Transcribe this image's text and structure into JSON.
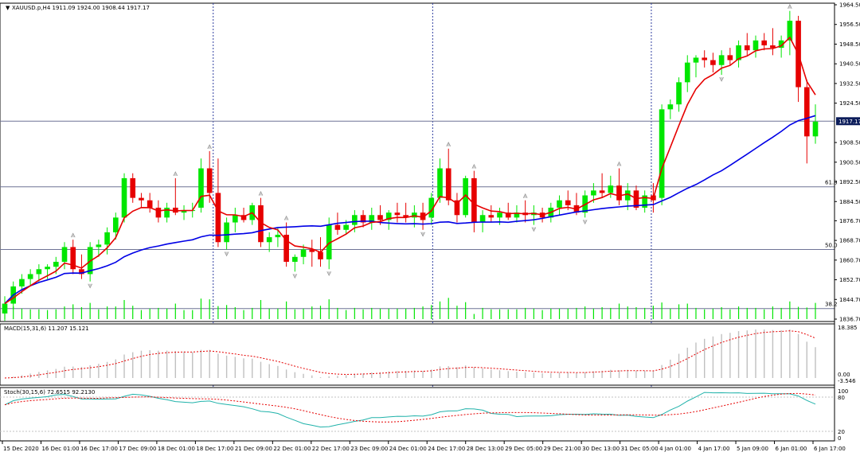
{
  "symbol_header": {
    "arrow": "▼",
    "text": "XAUUSD.p,H4  1911.09 1924.00 1908.44 1917.17"
  },
  "current_price_label": "1917.17",
  "price_axis": {
    "ticks": [
      "1964.50",
      "1956.50",
      "1948.50",
      "1940.50",
      "1932.50",
      "1924.50",
      "1908.50",
      "1900.50",
      "1892.50",
      "1884.50",
      "1876.70",
      "1868.70",
      "1860.70",
      "1852.70",
      "1844.70",
      "1836.70"
    ],
    "ymin": 1836.7,
    "ymax": 1964.5
  },
  "fib_levels": [
    {
      "label": "61.8",
      "price": 1890.5
    },
    {
      "label": "50.0",
      "price": 1865.0
    },
    {
      "label": "38.2",
      "price": 1841.0
    }
  ],
  "indicators": {
    "macd": {
      "label": "MACD(15,31,6) 11.207 15.121",
      "axis": [
        "18.385",
        "0.00",
        "-3.546"
      ]
    },
    "stoch": {
      "label": "Stoch(30,15,6) 72.6515 92.2130",
      "axis": [
        "100",
        "80",
        "20",
        "0"
      ]
    }
  },
  "time_axis": [
    "15 Dec 2020",
    "16 Dec 01:00",
    "16 Dec 17:00",
    "17 Dec 09:00",
    "18 Dec 01:00",
    "18 Dec 17:00",
    "21 Dec 09:00",
    "22 Dec 01:00",
    "22 Dec 17:00",
    "23 Dec 09:00",
    "24 Dec 01:00",
    "24 Dec 17:00",
    "28 Dec 13:00",
    "29 Dec 05:00",
    "29 Dec 21:00",
    "30 Dec 13:00",
    "31 Dec 05:00",
    "4 Jan 01:00",
    "4 Jan 17:00",
    "5 Jan 09:00",
    "6 Jan 01:00",
    "6 Jan 17:00"
  ],
  "colors": {
    "bull": "#00e600",
    "bear": "#e60000",
    "ma_fast": "#e60000",
    "ma_slow": "#0000e6",
    "stoch_main": "#20b2aa",
    "stoch_signal": "#e60000",
    "macd_hist": "#c0c0c0",
    "price_label_bg": "#0b1c5a"
  },
  "chart_data": {
    "type": "candlestick",
    "title": "XAUUSD.p,H4",
    "ohlc_header": {
      "open": 1911.09,
      "high": 1924.0,
      "low": 1908.44,
      "close": 1917.17
    },
    "candles": [
      [
        1839,
        1846,
        1836,
        1843
      ],
      [
        1843,
        1852,
        1841,
        1850
      ],
      [
        1850,
        1855,
        1847,
        1853
      ],
      [
        1853,
        1857,
        1850,
        1855
      ],
      [
        1855,
        1859,
        1852,
        1857
      ],
      [
        1857,
        1859,
        1853,
        1858
      ],
      [
        1858,
        1862,
        1855,
        1860
      ],
      [
        1860,
        1868,
        1857,
        1866
      ],
      [
        1866,
        1869,
        1855,
        1857
      ],
      [
        1857,
        1863,
        1853,
        1855
      ],
      [
        1855,
        1868,
        1852,
        1866
      ],
      [
        1866,
        1869,
        1862,
        1867
      ],
      [
        1867,
        1874,
        1863,
        1872
      ],
      [
        1872,
        1880,
        1869,
        1878
      ],
      [
        1878,
        1896,
        1876,
        1894
      ],
      [
        1894,
        1896,
        1884,
        1886
      ],
      [
        1886,
        1888,
        1882,
        1885
      ],
      [
        1885,
        1888,
        1880,
        1882
      ],
      [
        1882,
        1885,
        1876,
        1878
      ],
      [
        1878,
        1884,
        1876,
        1882
      ],
      [
        1882,
        1894,
        1879,
        1880
      ],
      [
        1880,
        1883,
        1877,
        1881
      ],
      [
        1881,
        1884,
        1878,
        1881
      ],
      [
        1882,
        1902,
        1880,
        1898
      ],
      [
        1898,
        1905,
        1884,
        1888
      ],
      [
        1888,
        1902,
        1866,
        1868
      ],
      [
        1868,
        1878,
        1865,
        1876
      ],
      [
        1876,
        1882,
        1872,
        1879
      ],
      [
        1879,
        1882,
        1876,
        1877
      ],
      [
        1877,
        1884,
        1875,
        1883
      ],
      [
        1883,
        1886,
        1866,
        1868
      ],
      [
        1868,
        1872,
        1864,
        1870
      ],
      [
        1870,
        1874,
        1866,
        1871
      ],
      [
        1871,
        1876,
        1858,
        1860
      ],
      [
        1860,
        1863,
        1856,
        1862
      ],
      [
        1862,
        1867,
        1859,
        1865
      ],
      [
        1865,
        1869,
        1858,
        1864
      ],
      [
        1864,
        1870,
        1858,
        1861
      ],
      [
        1861,
        1878,
        1857,
        1875
      ],
      [
        1875,
        1880,
        1871,
        1873
      ],
      [
        1873,
        1877,
        1871,
        1875
      ],
      [
        1875,
        1881,
        1872,
        1879
      ],
      [
        1879,
        1881,
        1874,
        1876
      ],
      [
        1876,
        1882,
        1873,
        1879
      ],
      [
        1879,
        1883,
        1875,
        1877
      ],
      [
        1877,
        1881,
        1873,
        1880
      ],
      [
        1880,
        1884,
        1876,
        1879
      ],
      [
        1879,
        1884,
        1876,
        1878
      ],
      [
        1878,
        1883,
        1874,
        1880
      ],
      [
        1880,
        1884,
        1873,
        1877
      ],
      [
        1878,
        1888,
        1875,
        1886
      ],
      [
        1886,
        1902,
        1884,
        1898
      ],
      [
        1898,
        1906,
        1883,
        1885
      ],
      [
        1885,
        1888,
        1876,
        1879
      ],
      [
        1879,
        1895,
        1878,
        1894
      ],
      [
        1894,
        1897,
        1872,
        1876
      ],
      [
        1876,
        1881,
        1872,
        1879
      ],
      [
        1879,
        1883,
        1876,
        1878
      ],
      [
        1878,
        1882,
        1875,
        1880
      ],
      [
        1880,
        1884,
        1877,
        1878
      ],
      [
        1878,
        1883,
        1876,
        1880
      ],
      [
        1880,
        1885,
        1876,
        1879
      ],
      [
        1879,
        1883,
        1875,
        1880
      ],
      [
        1880,
        1882,
        1876,
        1878
      ],
      [
        1878,
        1884,
        1876,
        1882
      ],
      [
        1882,
        1887,
        1879,
        1885
      ],
      [
        1885,
        1889,
        1881,
        1883
      ],
      [
        1883,
        1888,
        1879,
        1880
      ],
      [
        1880,
        1889,
        1878,
        1887
      ],
      [
        1887,
        1892,
        1884,
        1889
      ],
      [
        1889,
        1896,
        1886,
        1888
      ],
      [
        1888,
        1895,
        1886,
        1891
      ],
      [
        1891,
        1898,
        1883,
        1885
      ],
      [
        1885,
        1892,
        1881,
        1889
      ],
      [
        1889,
        1891,
        1881,
        1882
      ],
      [
        1882,
        1889,
        1880,
        1887
      ],
      [
        1887,
        1892,
        1880,
        1885
      ],
      [
        1886,
        1924,
        1883,
        1922
      ],
      [
        1922,
        1926,
        1918,
        1924
      ],
      [
        1924,
        1935,
        1921,
        1933
      ],
      [
        1933,
        1944,
        1929,
        1941
      ],
      [
        1941,
        1944,
        1935,
        1943
      ],
      [
        1943,
        1946,
        1939,
        1942
      ],
      [
        1942,
        1945,
        1937,
        1940
      ],
      [
        1940,
        1946,
        1936,
        1944
      ],
      [
        1944,
        1947,
        1940,
        1942
      ],
      [
        1942,
        1950,
        1939,
        1948
      ],
      [
        1948,
        1953,
        1944,
        1946
      ],
      [
        1946,
        1952,
        1943,
        1950
      ],
      [
        1950,
        1953,
        1946,
        1948
      ],
      [
        1948,
        1955,
        1944,
        1947
      ],
      [
        1947,
        1952,
        1943,
        1950
      ],
      [
        1950,
        1962,
        1944,
        1958
      ],
      [
        1958,
        1960,
        1925,
        1931
      ],
      [
        1931,
        1934,
        1900,
        1911
      ],
      [
        1911,
        1924,
        1908,
        1917
      ]
    ],
    "ylim": [
      1836.7,
      1964.5
    ]
  }
}
